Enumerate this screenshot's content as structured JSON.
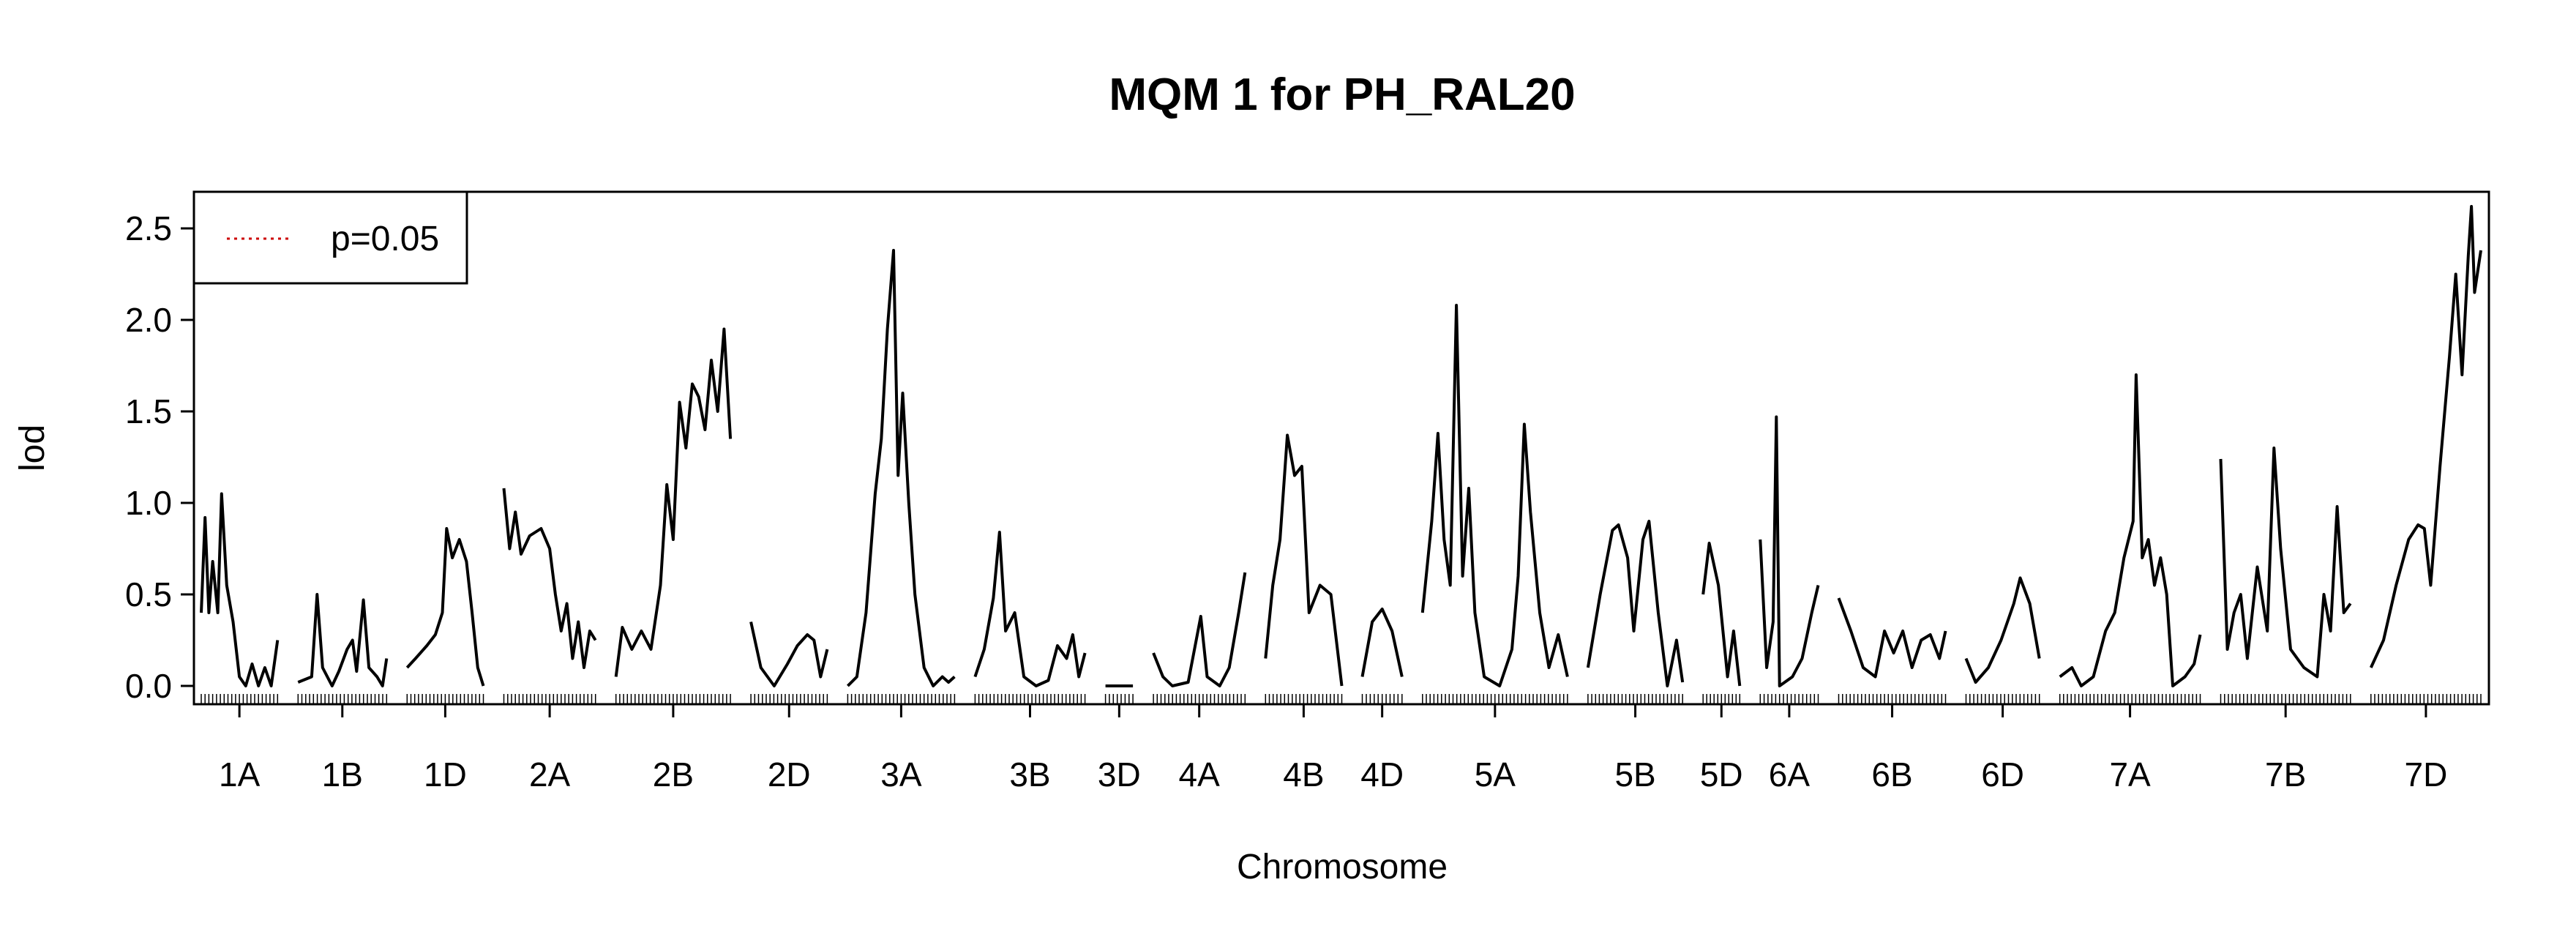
{
  "chart_data": {
    "type": "line",
    "title": "MQM 1 for PH_RAL20",
    "xlabel": "Chromosome",
    "ylabel": "lod",
    "ylim": [
      -0.1,
      2.7
    ],
    "y_ticks": [
      "0.0",
      "0.5",
      "1.0",
      "1.5",
      "2.0",
      "2.5"
    ],
    "legend": {
      "placement": "top-left",
      "entries": [
        {
          "label": "p=0.05",
          "color": "#cc0000",
          "style": "dotted"
        }
      ]
    },
    "line_color": "#000000",
    "threshold": null,
    "chromosomes": [
      {
        "name": "1A",
        "length": 50,
        "peaks": [
          [
            0,
            0.4
          ],
          [
            3,
            0.92
          ],
          [
            6,
            0.4
          ],
          [
            9,
            0.68
          ],
          [
            13,
            0.4
          ],
          [
            16,
            1.05
          ],
          [
            20,
            0.55
          ],
          [
            25,
            0.35
          ],
          [
            30,
            0.05
          ],
          [
            35,
            0.0
          ],
          [
            40,
            0.12
          ],
          [
            45,
            0.0
          ],
          [
            50,
            0.1
          ],
          [
            55,
            0.0
          ],
          [
            60,
            0.25
          ]
        ]
      },
      {
        "name": "1B",
        "length": 58,
        "peaks": [
          [
            0,
            0.02
          ],
          [
            10,
            0.05
          ],
          [
            14,
            0.5
          ],
          [
            18,
            0.1
          ],
          [
            25,
            0.0
          ],
          [
            30,
            0.08
          ],
          [
            36,
            0.2
          ],
          [
            40,
            0.25
          ],
          [
            43,
            0.08
          ],
          [
            48,
            0.47
          ],
          [
            52,
            0.1
          ],
          [
            58,
            0.05
          ],
          [
            62,
            0.0
          ],
          [
            65,
            0.15
          ]
        ]
      },
      {
        "name": "1D",
        "length": 50,
        "peaks": [
          [
            0,
            0.1
          ],
          [
            6,
            0.15
          ],
          [
            14,
            0.22
          ],
          [
            20,
            0.28
          ],
          [
            25,
            0.4
          ],
          [
            28,
            0.86
          ],
          [
            32,
            0.7
          ],
          [
            37,
            0.8
          ],
          [
            42,
            0.68
          ],
          [
            46,
            0.4
          ],
          [
            50,
            0.1
          ],
          [
            54,
            0.0
          ]
        ]
      },
      {
        "name": "2A",
        "length": 60,
        "peaks": [
          [
            0,
            1.08
          ],
          [
            4,
            0.75
          ],
          [
            8,
            0.95
          ],
          [
            12,
            0.72
          ],
          [
            18,
            0.82
          ],
          [
            26,
            0.86
          ],
          [
            32,
            0.75
          ],
          [
            36,
            0.5
          ],
          [
            40,
            0.3
          ],
          [
            44,
            0.45
          ],
          [
            48,
            0.15
          ],
          [
            52,
            0.35
          ],
          [
            56,
            0.1
          ],
          [
            60,
            0.3
          ],
          [
            64,
            0.25
          ]
        ]
      },
      {
        "name": "2B",
        "length": 75,
        "peaks": [
          [
            0,
            0.05
          ],
          [
            4,
            0.32
          ],
          [
            10,
            0.2
          ],
          [
            16,
            0.3
          ],
          [
            22,
            0.2
          ],
          [
            28,
            0.55
          ],
          [
            32,
            1.1
          ],
          [
            36,
            0.8
          ],
          [
            40,
            1.55
          ],
          [
            44,
            1.3
          ],
          [
            48,
            1.65
          ],
          [
            52,
            1.58
          ],
          [
            56,
            1.4
          ],
          [
            60,
            1.78
          ],
          [
            64,
            1.5
          ],
          [
            68,
            1.95
          ],
          [
            72,
            1.35
          ]
        ]
      },
      {
        "name": "2D",
        "length": 50,
        "peaks": [
          [
            0,
            0.35
          ],
          [
            6,
            0.1
          ],
          [
            14,
            0.0
          ],
          [
            22,
            0.12
          ],
          [
            28,
            0.22
          ],
          [
            34,
            0.28
          ],
          [
            38,
            0.25
          ],
          [
            42,
            0.05
          ],
          [
            46,
            0.2
          ]
        ]
      },
      {
        "name": "3A",
        "length": 70,
        "peaks": [
          [
            0,
            0.0
          ],
          [
            6,
            0.05
          ],
          [
            12,
            0.4
          ],
          [
            18,
            1.05
          ],
          [
            22,
            1.35
          ],
          [
            26,
            1.95
          ],
          [
            30,
            2.38
          ],
          [
            33,
            1.15
          ],
          [
            36,
            1.6
          ],
          [
            40,
            1.0
          ],
          [
            44,
            0.5
          ],
          [
            50,
            0.1
          ],
          [
            56,
            0.0
          ],
          [
            62,
            0.05
          ],
          [
            66,
            0.02
          ],
          [
            70,
            0.05
          ]
        ]
      },
      {
        "name": "3B",
        "length": 72,
        "peaks": [
          [
            0,
            0.05
          ],
          [
            6,
            0.2
          ],
          [
            12,
            0.48
          ],
          [
            16,
            0.84
          ],
          [
            20,
            0.3
          ],
          [
            26,
            0.4
          ],
          [
            32,
            0.05
          ],
          [
            40,
            0.0
          ],
          [
            48,
            0.03
          ],
          [
            54,
            0.22
          ],
          [
            60,
            0.15
          ],
          [
            64,
            0.28
          ],
          [
            68,
            0.05
          ],
          [
            72,
            0.18
          ]
        ]
      },
      {
        "name": "3D",
        "length": 18,
        "peaks": [
          [
            0,
            0.0
          ],
          [
            18,
            0.0
          ]
        ]
      },
      {
        "name": "4A",
        "length": 60,
        "peaks": [
          [
            0,
            0.18
          ],
          [
            6,
            0.05
          ],
          [
            12,
            0.0
          ],
          [
            22,
            0.02
          ],
          [
            30,
            0.38
          ],
          [
            34,
            0.05
          ],
          [
            42,
            0.0
          ],
          [
            48,
            0.1
          ],
          [
            54,
            0.4
          ],
          [
            58,
            0.62
          ]
        ]
      },
      {
        "name": "4B",
        "length": 50,
        "peaks": [
          [
            0,
            0.15
          ],
          [
            4,
            0.55
          ],
          [
            8,
            0.8
          ],
          [
            12,
            1.37
          ],
          [
            16,
            1.15
          ],
          [
            20,
            1.2
          ],
          [
            24,
            0.4
          ],
          [
            30,
            0.55
          ],
          [
            36,
            0.5
          ],
          [
            42,
            0.0
          ]
        ]
      },
      {
        "name": "4D",
        "length": 26,
        "peaks": [
          [
            0,
            0.05
          ],
          [
            6,
            0.35
          ],
          [
            12,
            0.42
          ],
          [
            18,
            0.3
          ],
          [
            24,
            0.05
          ]
        ]
      },
      {
        "name": "5A",
        "length": 95,
        "peaks": [
          [
            0,
            0.4
          ],
          [
            6,
            0.9
          ],
          [
            10,
            1.38
          ],
          [
            14,
            0.8
          ],
          [
            18,
            0.55
          ],
          [
            22,
            2.08
          ],
          [
            26,
            0.6
          ],
          [
            30,
            1.08
          ],
          [
            34,
            0.4
          ],
          [
            40,
            0.05
          ],
          [
            50,
            0.0
          ],
          [
            58,
            0.2
          ],
          [
            62,
            0.6
          ],
          [
            66,
            1.43
          ],
          [
            70,
            0.95
          ],
          [
            76,
            0.4
          ],
          [
            82,
            0.1
          ],
          [
            88,
            0.28
          ],
          [
            94,
            0.05
          ]
        ]
      },
      {
        "name": "5B",
        "length": 62,
        "peaks": [
          [
            0,
            0.1
          ],
          [
            8,
            0.5
          ],
          [
            16,
            0.85
          ],
          [
            20,
            0.88
          ],
          [
            26,
            0.7
          ],
          [
            30,
            0.3
          ],
          [
            36,
            0.8
          ],
          [
            40,
            0.9
          ],
          [
            46,
            0.4
          ],
          [
            52,
            0.0
          ],
          [
            58,
            0.25
          ],
          [
            62,
            0.02
          ]
        ]
      },
      {
        "name": "5D",
        "length": 24,
        "peaks": [
          [
            0,
            0.5
          ],
          [
            4,
            0.78
          ],
          [
            10,
            0.55
          ],
          [
            16,
            0.05
          ],
          [
            20,
            0.3
          ],
          [
            24,
            0.0
          ]
        ]
      },
      {
        "name": "6A",
        "length": 38,
        "peaks": [
          [
            0,
            0.8
          ],
          [
            4,
            0.1
          ],
          [
            8,
            0.35
          ],
          [
            10,
            1.47
          ],
          [
            12,
            0.0
          ],
          [
            20,
            0.05
          ],
          [
            26,
            0.15
          ],
          [
            32,
            0.4
          ],
          [
            36,
            0.55
          ]
        ]
      },
      {
        "name": "6B",
        "length": 70,
        "peaks": [
          [
            0,
            0.48
          ],
          [
            8,
            0.3
          ],
          [
            16,
            0.1
          ],
          [
            24,
            0.05
          ],
          [
            30,
            0.3
          ],
          [
            36,
            0.18
          ],
          [
            42,
            0.3
          ],
          [
            48,
            0.1
          ],
          [
            54,
            0.25
          ],
          [
            60,
            0.28
          ],
          [
            66,
            0.15
          ],
          [
            70,
            0.3
          ]
        ]
      },
      {
        "name": "6D",
        "length": 48,
        "peaks": [
          [
            0,
            0.15
          ],
          [
            6,
            0.02
          ],
          [
            14,
            0.1
          ],
          [
            22,
            0.25
          ],
          [
            30,
            0.45
          ],
          [
            34,
            0.59
          ],
          [
            40,
            0.45
          ],
          [
            46,
            0.15
          ]
        ]
      },
      {
        "name": "7A",
        "length": 92,
        "peaks": [
          [
            0,
            0.05
          ],
          [
            8,
            0.1
          ],
          [
            14,
            0.0
          ],
          [
            22,
            0.05
          ],
          [
            30,
            0.3
          ],
          [
            36,
            0.4
          ],
          [
            42,
            0.7
          ],
          [
            48,
            0.9
          ],
          [
            50,
            1.7
          ],
          [
            54,
            0.7
          ],
          [
            58,
            0.8
          ],
          [
            62,
            0.55
          ],
          [
            66,
            0.7
          ],
          [
            70,
            0.5
          ],
          [
            74,
            0.0
          ],
          [
            82,
            0.05
          ],
          [
            88,
            0.12
          ],
          [
            92,
            0.28
          ]
        ]
      },
      {
        "name": "7B",
        "length": 85,
        "peaks": [
          [
            0,
            1.24
          ],
          [
            4,
            0.2
          ],
          [
            8,
            0.4
          ],
          [
            12,
            0.5
          ],
          [
            16,
            0.15
          ],
          [
            22,
            0.65
          ],
          [
            28,
            0.3
          ],
          [
            32,
            1.3
          ],
          [
            36,
            0.75
          ],
          [
            42,
            0.2
          ],
          [
            50,
            0.1
          ],
          [
            58,
            0.05
          ],
          [
            62,
            0.5
          ],
          [
            66,
            0.3
          ],
          [
            70,
            0.98
          ],
          [
            74,
            0.4
          ],
          [
            78,
            0.45
          ]
        ]
      },
      {
        "name": "7D",
        "length": 72,
        "peaks": [
          [
            0,
            0.1
          ],
          [
            8,
            0.25
          ],
          [
            16,
            0.55
          ],
          [
            24,
            0.8
          ],
          [
            30,
            0.88
          ],
          [
            34,
            0.86
          ],
          [
            38,
            0.55
          ],
          [
            44,
            1.2
          ],
          [
            50,
            1.8
          ],
          [
            54,
            2.25
          ],
          [
            58,
            1.7
          ],
          [
            62,
            2.35
          ],
          [
            64,
            2.62
          ],
          [
            66,
            2.15
          ],
          [
            70,
            2.38
          ]
        ]
      }
    ]
  }
}
